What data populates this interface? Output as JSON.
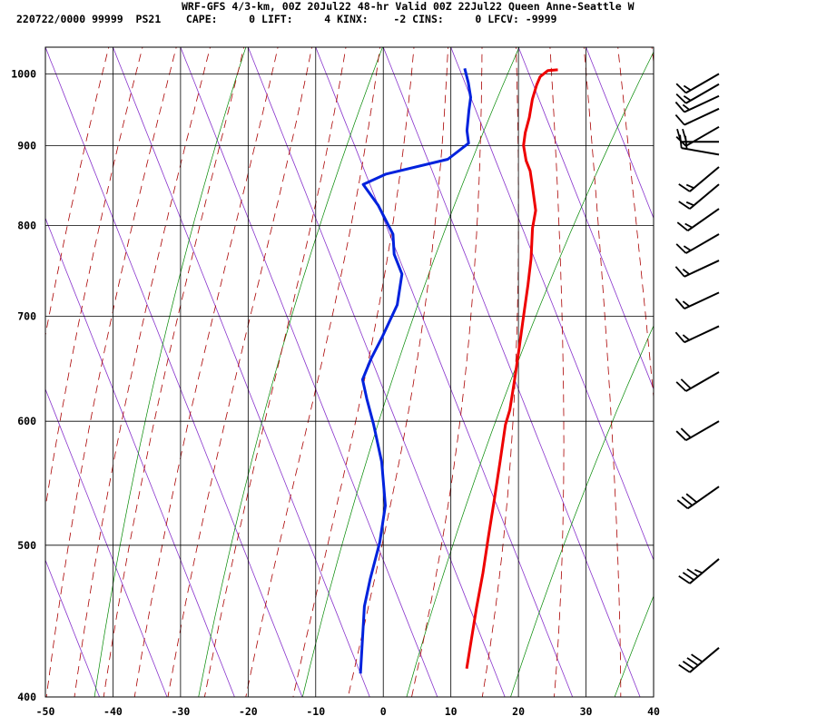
{
  "header": {
    "title": "WRF-GFS 4/3-km, 00Z 20Jul22 48-hr Valid 00Z 22Jul22 Queen Anne-Seattle W",
    "indices": "220722/0000 99999  PS21    CAPE:     0 LIFT:     4 KINX:    -2 CINS:     0 LFCV: -9999"
  },
  "colors": {
    "temperature": "#ee0000",
    "dewpoint": "#0022dd",
    "dry_adiabat": "#008800",
    "moist_adiabat": "#aa0000",
    "isotherm_skew": "#8833cc",
    "grid": "#000000"
  },
  "chart_data": {
    "type": "line",
    "subtype": "skew-T log-P sounding",
    "xlim": [
      -50,
      40
    ],
    "ylim": [
      1040,
      400
    ],
    "y_scale": "log",
    "x_ticks": [
      -50,
      -40,
      -30,
      -20,
      -10,
      0,
      10,
      20,
      30,
      40
    ],
    "y_ticks": [
      400,
      500,
      600,
      700,
      800,
      900,
      1000
    ],
    "grid": true,
    "series": [
      {
        "key": "temperature",
        "points": [
          [
            24.5,
            1006
          ],
          [
            23,
            1005
          ],
          [
            21.5,
            996
          ],
          [
            20.5,
            984
          ],
          [
            19,
            963
          ],
          [
            17.5,
            938
          ],
          [
            16,
            917
          ],
          [
            15,
            900
          ],
          [
            14.5,
            880
          ],
          [
            14.5,
            867
          ],
          [
            14,
            850
          ],
          [
            13,
            818
          ],
          [
            11.5,
            797
          ],
          [
            9.5,
            762
          ],
          [
            7.5,
            733
          ],
          [
            5,
            700
          ],
          [
            2.5,
            668
          ],
          [
            0,
            638
          ],
          [
            -2.5,
            610
          ],
          [
            -4,
            597
          ],
          [
            -7,
            565
          ],
          [
            -10,
            535
          ],
          [
            -13,
            507
          ],
          [
            -16,
            480
          ],
          [
            -19,
            456
          ],
          [
            -24,
            417
          ]
        ]
      },
      {
        "key": "dewpoint",
        "points": [
          [
            10.8,
            1008
          ],
          [
            10.5,
            987
          ],
          [
            10,
            966
          ],
          [
            9,
            948
          ],
          [
            7.5,
            920
          ],
          [
            7,
            903
          ],
          [
            3,
            882
          ],
          [
            -7,
            863
          ],
          [
            -11,
            850
          ],
          [
            -10,
            824
          ],
          [
            -9.5,
            790
          ],
          [
            -10.5,
            767
          ],
          [
            -10.5,
            745
          ],
          [
            -13,
            712
          ],
          [
            -17,
            680
          ],
          [
            -20,
            658
          ],
          [
            -22.5,
            638
          ],
          [
            -23,
            620
          ],
          [
            -23.5,
            597
          ],
          [
            -24.5,
            565
          ],
          [
            -26.5,
            530
          ],
          [
            -29.5,
            502
          ],
          [
            -33,
            476
          ],
          [
            -35.5,
            457
          ],
          [
            -40,
            414
          ]
        ]
      }
    ],
    "wind_barbs": [
      {
        "p": 1000,
        "dir": 240,
        "kt": 15
      },
      {
        "p": 985,
        "dir": 240,
        "kt": 15
      },
      {
        "p": 968,
        "dir": 245,
        "kt": 15
      },
      {
        "p": 950,
        "dir": 245,
        "kt": 10
      },
      {
        "p": 925,
        "dir": 240,
        "kt": 10
      },
      {
        "p": 905,
        "dir": 270,
        "kt": 20
      },
      {
        "p": 888,
        "dir": 280,
        "kt": 20
      },
      {
        "p": 872,
        "dir": 230,
        "kt": 15
      },
      {
        "p": 850,
        "dir": 230,
        "kt": 15
      },
      {
        "p": 820,
        "dir": 235,
        "kt": 15
      },
      {
        "p": 790,
        "dir": 240,
        "kt": 15
      },
      {
        "p": 760,
        "dir": 245,
        "kt": 15
      },
      {
        "p": 725,
        "dir": 245,
        "kt": 15
      },
      {
        "p": 690,
        "dir": 245,
        "kt": 15
      },
      {
        "p": 645,
        "dir": 240,
        "kt": 20
      },
      {
        "p": 600,
        "dir": 240,
        "kt": 20
      },
      {
        "p": 545,
        "dir": 235,
        "kt": 30
      },
      {
        "p": 490,
        "dir": 230,
        "kt": 35
      },
      {
        "p": 430,
        "dir": 230,
        "kt": 40
      }
    ]
  }
}
